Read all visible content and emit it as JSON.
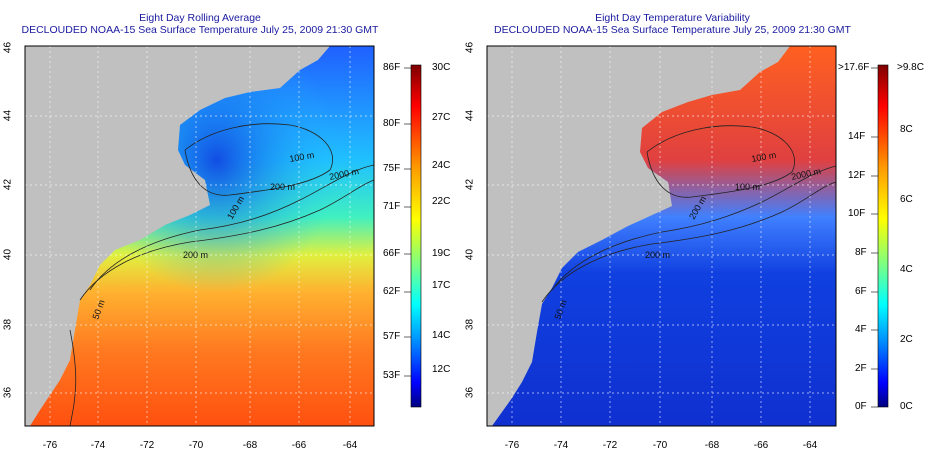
{
  "left": {
    "title_line1": "Eight Day Rolling Average",
    "title_line2": "DECLOUDED NOAA-15 Sea Surface Temperature July 25, 2009 21:30 GMT",
    "colorbar_f": [
      "86F",
      "80F",
      "75F",
      "71F",
      "66F",
      "62F",
      "57F",
      "53F"
    ],
    "colorbar_c": [
      "30C",
      "27C",
      "24C",
      "22C",
      "19C",
      "17C",
      "14C",
      "12C"
    ],
    "contour_labels": [
      "100 m",
      "200 m",
      "100 m",
      "200 m",
      "50 m",
      "2000 m"
    ]
  },
  "right": {
    "title_line1": "Eight Day Temperature Variability",
    "title_line2": "DECLOUDED NOAA-15 Sea Surface Temperature July 25, 2009 21:30 GMT",
    "colorbar_f": [
      ">17.6F",
      "14F",
      "12F",
      "10F",
      "8F",
      "6F",
      "4F",
      "2F",
      "0F"
    ],
    "colorbar_c": [
      ">9.8C",
      "8C",
      "6C",
      "4C",
      "2C",
      "0C"
    ],
    "contour_labels": [
      "100 m",
      "100 m",
      "200 m",
      "200 m",
      "50 m",
      "2000 m"
    ]
  },
  "axes": {
    "lat_ticks": [
      "46",
      "44",
      "42",
      "40",
      "38",
      "36"
    ],
    "lon_ticks": [
      "-76",
      "-74",
      "-72",
      "-70",
      "-68",
      "-66",
      "-64"
    ]
  },
  "colors": {
    "land": "#c0c0c0",
    "title": "#1a1aa0",
    "sst_scale": [
      "#00007f",
      "#0000ff",
      "#007fff",
      "#00ffff",
      "#7fff7f",
      "#ffff00",
      "#ff7f00",
      "#ff0000",
      "#7f0000"
    ]
  }
}
